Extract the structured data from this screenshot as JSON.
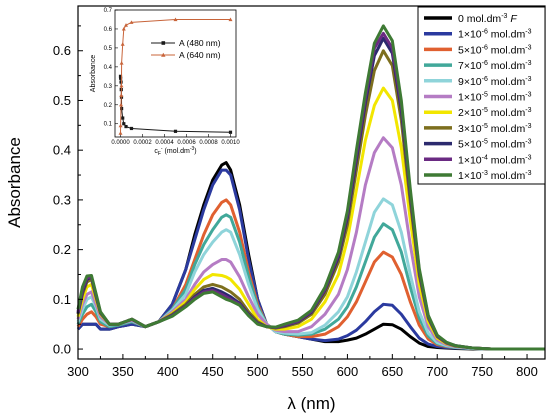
{
  "chart_data": [
    {
      "type": "line",
      "xlabel": "λ (nm)",
      "ylabel": "Absorbance",
      "xlim": [
        300,
        820
      ],
      "ylim": [
        -0.02,
        0.69
      ],
      "xticks": [
        300,
        350,
        400,
        450,
        500,
        550,
        600,
        650,
        700,
        750,
        800
      ],
      "yticks": [
        0.0,
        0.1,
        0.2,
        0.3,
        0.4,
        0.5,
        0.6
      ],
      "legend_position": "top-right",
      "x": [
        300,
        305,
        310,
        315,
        320,
        325,
        335,
        345,
        360,
        375,
        390,
        405,
        420,
        430,
        440,
        450,
        460,
        465,
        470,
        480,
        490,
        500,
        510,
        520,
        530,
        545,
        560,
        575,
        590,
        600,
        610,
        620,
        630,
        640,
        650,
        660,
        670,
        680,
        690,
        700,
        710,
        720,
        740,
        760,
        780,
        800,
        820
      ],
      "series": [
        {
          "name": "0 mol.dm-3 F",
          "color": "#000000",
          "values": [
            0.04,
            0.05,
            0.05,
            0.05,
            0.05,
            0.04,
            0.04,
            0.045,
            0.05,
            0.045,
            0.055,
            0.09,
            0.16,
            0.23,
            0.29,
            0.34,
            0.37,
            0.375,
            0.36,
            0.29,
            0.19,
            0.1,
            0.05,
            0.035,
            0.03,
            0.025,
            0.02,
            0.015,
            0.015,
            0.018,
            0.022,
            0.03,
            0.04,
            0.05,
            0.049,
            0.04,
            0.025,
            0.012,
            0.005,
            0.003,
            0.002,
            0.001,
            0.0,
            0.0,
            0.0,
            0.0,
            0.0
          ]
        },
        {
          "name": "1×10-6 mol.dm-3",
          "color": "#2b3a9f",
          "values": [
            0.04,
            0.05,
            0.05,
            0.05,
            0.05,
            0.04,
            0.04,
            0.045,
            0.05,
            0.045,
            0.055,
            0.09,
            0.16,
            0.22,
            0.28,
            0.33,
            0.36,
            0.36,
            0.35,
            0.28,
            0.18,
            0.1,
            0.05,
            0.035,
            0.03,
            0.025,
            0.02,
            0.017,
            0.02,
            0.027,
            0.038,
            0.055,
            0.075,
            0.09,
            0.088,
            0.07,
            0.045,
            0.022,
            0.01,
            0.005,
            0.003,
            0.002,
            0.001,
            0.0,
            0.0,
            0.0,
            0.0
          ]
        },
        {
          "name": "5×10-6 mol.dm-3",
          "color": "#e06030",
          "values": [
            0.045,
            0.06,
            0.07,
            0.075,
            0.065,
            0.05,
            0.045,
            0.048,
            0.055,
            0.045,
            0.055,
            0.08,
            0.13,
            0.18,
            0.23,
            0.27,
            0.295,
            0.3,
            0.29,
            0.235,
            0.155,
            0.09,
            0.05,
            0.035,
            0.03,
            0.025,
            0.025,
            0.03,
            0.045,
            0.065,
            0.095,
            0.135,
            0.175,
            0.195,
            0.185,
            0.15,
            0.095,
            0.048,
            0.02,
            0.009,
            0.005,
            0.003,
            0.001,
            0.0,
            0.0,
            0.0,
            0.0
          ]
        },
        {
          "name": "7×10-6 mol.dm-3",
          "color": "#41a89a",
          "values": [
            0.05,
            0.07,
            0.085,
            0.09,
            0.075,
            0.055,
            0.045,
            0.048,
            0.055,
            0.045,
            0.055,
            0.08,
            0.12,
            0.17,
            0.21,
            0.24,
            0.265,
            0.27,
            0.265,
            0.215,
            0.145,
            0.085,
            0.05,
            0.035,
            0.03,
            0.028,
            0.03,
            0.04,
            0.06,
            0.085,
            0.125,
            0.175,
            0.225,
            0.252,
            0.24,
            0.195,
            0.125,
            0.062,
            0.026,
            0.011,
            0.006,
            0.003,
            0.001,
            0.0,
            0.0,
            0.0,
            0.0
          ]
        },
        {
          "name": "9×10-6 mol.dm-3",
          "color": "#8fd4da",
          "values": [
            0.055,
            0.08,
            0.1,
            0.105,
            0.085,
            0.06,
            0.048,
            0.05,
            0.057,
            0.045,
            0.055,
            0.078,
            0.11,
            0.155,
            0.19,
            0.215,
            0.235,
            0.24,
            0.235,
            0.19,
            0.13,
            0.08,
            0.05,
            0.035,
            0.032,
            0.03,
            0.033,
            0.048,
            0.075,
            0.105,
            0.155,
            0.215,
            0.275,
            0.302,
            0.29,
            0.235,
            0.15,
            0.075,
            0.032,
            0.013,
            0.007,
            0.004,
            0.001,
            0.0,
            0.0,
            0.0,
            0.0
          ]
        },
        {
          "name": "1×10-5 mol.dm-3",
          "color": "#b57cc4",
          "values": [
            0.06,
            0.09,
            0.11,
            0.115,
            0.09,
            0.065,
            0.05,
            0.05,
            0.058,
            0.045,
            0.055,
            0.075,
            0.1,
            0.13,
            0.155,
            0.17,
            0.18,
            0.18,
            0.175,
            0.145,
            0.105,
            0.07,
            0.05,
            0.038,
            0.035,
            0.035,
            0.045,
            0.07,
            0.11,
            0.16,
            0.235,
            0.33,
            0.395,
            0.425,
            0.405,
            0.33,
            0.21,
            0.105,
            0.045,
            0.018,
            0.009,
            0.005,
            0.002,
            0.0,
            0.0,
            0.0,
            0.0
          ]
        },
        {
          "name": "2×10-5 mol.dm-3",
          "color": "#f2e600",
          "values": [
            0.065,
            0.1,
            0.125,
            0.13,
            0.1,
            0.07,
            0.05,
            0.05,
            0.06,
            0.045,
            0.055,
            0.072,
            0.095,
            0.12,
            0.14,
            0.15,
            0.148,
            0.145,
            0.14,
            0.12,
            0.09,
            0.06,
            0.045,
            0.04,
            0.04,
            0.045,
            0.06,
            0.095,
            0.15,
            0.22,
            0.32,
            0.42,
            0.49,
            0.525,
            0.5,
            0.405,
            0.26,
            0.13,
            0.055,
            0.022,
            0.011,
            0.006,
            0.002,
            0.0,
            0.0,
            0.0,
            0.0
          ]
        },
        {
          "name": "3×10-5 mol.dm-3",
          "color": "#7d6f1e",
          "values": [
            0.07,
            0.11,
            0.135,
            0.14,
            0.105,
            0.072,
            0.05,
            0.05,
            0.06,
            0.045,
            0.055,
            0.07,
            0.09,
            0.11,
            0.125,
            0.13,
            0.125,
            0.12,
            0.115,
            0.1,
            0.075,
            0.055,
            0.045,
            0.042,
            0.045,
            0.052,
            0.07,
            0.11,
            0.175,
            0.25,
            0.36,
            0.47,
            0.56,
            0.6,
            0.57,
            0.46,
            0.295,
            0.148,
            0.062,
            0.025,
            0.012,
            0.006,
            0.002,
            0.0,
            0.0,
            0.0,
            0.0
          ]
        },
        {
          "name": "5×10-5 mol.dm-3",
          "color": "#2c2a6e",
          "values": [
            0.072,
            0.115,
            0.14,
            0.145,
            0.108,
            0.073,
            0.05,
            0.05,
            0.06,
            0.045,
            0.055,
            0.068,
            0.087,
            0.105,
            0.118,
            0.122,
            0.115,
            0.11,
            0.105,
            0.092,
            0.07,
            0.052,
            0.045,
            0.043,
            0.047,
            0.055,
            0.074,
            0.118,
            0.185,
            0.265,
            0.38,
            0.495,
            0.59,
            0.625,
            0.595,
            0.48,
            0.31,
            0.155,
            0.065,
            0.026,
            0.013,
            0.007,
            0.002,
            0.0,
            0.0,
            0.0,
            0.0
          ]
        },
        {
          "name": "1×10-4 mol.dm-3",
          "color": "#6a2a82",
          "values": [
            0.075,
            0.12,
            0.143,
            0.145,
            0.11,
            0.074,
            0.05,
            0.05,
            0.06,
            0.045,
            0.055,
            0.067,
            0.086,
            0.103,
            0.115,
            0.118,
            0.11,
            0.105,
            0.1,
            0.09,
            0.068,
            0.051,
            0.045,
            0.043,
            0.048,
            0.056,
            0.076,
            0.12,
            0.19,
            0.272,
            0.39,
            0.505,
            0.605,
            0.635,
            0.605,
            0.49,
            0.315,
            0.158,
            0.066,
            0.027,
            0.013,
            0.007,
            0.002,
            0.0,
            0.0,
            0.0,
            0.0
          ]
        },
        {
          "name": "1×10-3 mol.dm-3",
          "color": "#3e7a34",
          "values": [
            0.08,
            0.125,
            0.147,
            0.148,
            0.112,
            0.075,
            0.05,
            0.05,
            0.06,
            0.045,
            0.055,
            0.066,
            0.085,
            0.1,
            0.112,
            0.115,
            0.105,
            0.1,
            0.097,
            0.088,
            0.067,
            0.05,
            0.045,
            0.044,
            0.05,
            0.058,
            0.078,
            0.124,
            0.195,
            0.278,
            0.4,
            0.515,
            0.615,
            0.65,
            0.62,
            0.5,
            0.322,
            0.162,
            0.068,
            0.028,
            0.014,
            0.007,
            0.002,
            0.0,
            0.0,
            0.0,
            0.0
          ]
        }
      ],
      "legend": [
        {
          "main": "0 mol.dm",
          "sup": "-3",
          "suffix": " F"
        },
        {
          "main": "1×10",
          "sup": "-6",
          "rest": " mol.dm",
          "sup2": "-3"
        },
        {
          "main": "5×10",
          "sup": "-6",
          "rest": " mol.dm",
          "sup2": "-3"
        },
        {
          "main": "7×10",
          "sup": "-6",
          "rest": " mol.dm",
          "sup2": "-3"
        },
        {
          "main": "9×10",
          "sup": "-6",
          "rest": " mol.dm",
          "sup2": "-3"
        },
        {
          "main": "1×10",
          "sup": "-5",
          "rest": " mol.dm",
          "sup2": "-3"
        },
        {
          "main": "2×10",
          "sup": "-5",
          "rest": " mol.dm",
          "sup2": "-3"
        },
        {
          "main": "3×10",
          "sup": "-5",
          "rest": " mol.dm",
          "sup2": "-3"
        },
        {
          "main": "5×10",
          "sup": "-5",
          "rest": " mol.dm",
          "sup2": "-3"
        },
        {
          "main": "1×10",
          "sup": "-4",
          "rest": " mol.dm",
          "sup2": "-3"
        },
        {
          "main": "1×10",
          "sup": "-3",
          "rest": " mol.dm",
          "sup2": "-3"
        }
      ]
    },
    {
      "type": "scatter",
      "inset": true,
      "xlabel_main": "c",
      "xlabel_sub": "F",
      "xlabel_sup": "-",
      "xlabel_rest": " (mol.dm",
      "xlabel_sup2": "-3",
      "xlabel_end": ")",
      "ylabel": "Absorbance",
      "xlim": [
        -5e-05,
        0.00105
      ],
      "ylim": [
        0.03,
        0.7
      ],
      "xticks": [
        0.0,
        0.0002,
        0.0004,
        0.0006,
        0.0008,
        0.001
      ],
      "xtick_labels": [
        "0.0000",
        "0.0002",
        "0.0004",
        "0.0006",
        "0.0008",
        "0.0010"
      ],
      "yticks": [
        0.1,
        0.2,
        0.3,
        0.4,
        0.5,
        0.6,
        0.7
      ],
      "yticks_labels": [
        "0.1",
        "0.2",
        "0.3",
        "0.4",
        "0.5",
        "0.6",
        "0.7"
      ],
      "series": [
        {
          "name": "A (480 nm)",
          "color": "#1a1a1a",
          "marker": "square",
          "x": [
            0,
            1e-06,
            5e-06,
            7e-06,
            9e-06,
            1e-05,
            2e-05,
            3e-05,
            5e-05,
            0.0001,
            0.0005,
            0.001
          ],
          "y": [
            0.35,
            0.34,
            0.32,
            0.28,
            0.24,
            0.18,
            0.13,
            0.1,
            0.085,
            0.075,
            0.06,
            0.055
          ]
        },
        {
          "name": "A (640 nm)",
          "color": "#c8643a",
          "marker": "triangle",
          "x": [
            0,
            1e-06,
            5e-06,
            7e-06,
            9e-06,
            1e-05,
            2e-05,
            3e-05,
            5e-05,
            0.0001,
            0.0005,
            0.001
          ],
          "y": [
            0.05,
            0.09,
            0.2,
            0.25,
            0.3,
            0.42,
            0.52,
            0.6,
            0.62,
            0.635,
            0.65,
            0.65
          ]
        }
      ]
    }
  ]
}
